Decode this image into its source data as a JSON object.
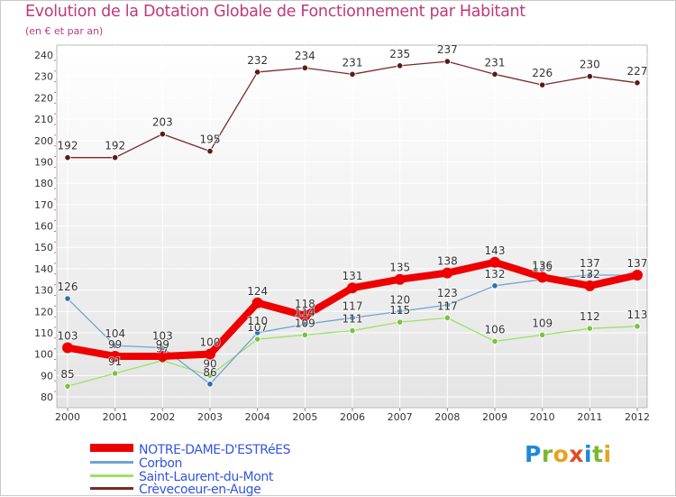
{
  "title": "Evolution de la Dotation Globale de Fonctionnement par Habitant",
  "subtitle": "(en € et par an)",
  "logo": {
    "text": "Proxiti",
    "colors": [
      "#1e8ad6",
      "#7cb82f",
      "#e9a21e",
      "#e04c24",
      "#1e8ad6",
      "#7cb82f",
      "#e9a21e"
    ]
  },
  "chart_data": {
    "type": "line",
    "title": "Evolution de la Dotation Globale de Fonctionnement par Habitant",
    "subtitle": "(en € et par an)",
    "xlabel": "",
    "ylabel": "",
    "x": [
      "2000",
      "2001",
      "2002",
      "2003",
      "2004",
      "2005",
      "2006",
      "2007",
      "2008",
      "2009",
      "2010",
      "2011",
      "2012"
    ],
    "ylim": [
      80,
      240
    ],
    "ytick_step": 10,
    "grid": true,
    "legend_position": "bottom-left",
    "series": [
      {
        "name": "Crèvecoeur-en-Auge",
        "color": "#7a2a2a",
        "marker_color": "#5a1a1a",
        "values": [
          192,
          192,
          203,
          195,
          232,
          234,
          231,
          235,
          237,
          231,
          226,
          230,
          227
        ],
        "labels": [
          "192",
          "192",
          "203",
          "195",
          "232",
          "234",
          "231",
          "235",
          "237",
          "231",
          "226",
          "230",
          "227"
        ]
      },
      {
        "name": "Saint-Laurent-du-Mont",
        "color": "#9ee06a",
        "marker_color": "#7cc241",
        "values": [
          85,
          91,
          97,
          90,
          107,
          109,
          111,
          115,
          117,
          106,
          109,
          112,
          113
        ],
        "labels": [
          "85",
          "91",
          "97",
          "90",
          "107",
          "109",
          "111",
          "115",
          "117",
          "106",
          "109",
          "112",
          "113"
        ]
      },
      {
        "name": "Corbon",
        "color": "#6fa3d6",
        "marker_color": "#2f6fb0",
        "values": [
          126,
          104,
          103,
          86,
          110,
          114,
          117,
          120,
          123,
          132,
          135,
          137,
          137
        ],
        "labels": [
          "126",
          "104",
          "103",
          "86",
          "110",
          "114",
          "117",
          "120",
          "123",
          "132",
          "135",
          "137",
          "137"
        ]
      },
      {
        "name": "NOTRE-DAME-D'ESTRéES",
        "color": "#ee0000",
        "marker_color": "#ee0000",
        "values": [
          103,
          99,
          99,
          100,
          124,
          118,
          131,
          135,
          138,
          143,
          136,
          132,
          137
        ],
        "labels": [
          "103",
          "99",
          "99",
          "100",
          "124",
          "118",
          "131",
          "135",
          "138",
          "143",
          "136",
          "132",
          "137"
        ]
      }
    ],
    "legend_order": [
      "NOTRE-DAME-D'ESTRéES",
      "Corbon",
      "Saint-Laurent-du-Mont",
      "Crèvecoeur-en-Auge"
    ]
  }
}
